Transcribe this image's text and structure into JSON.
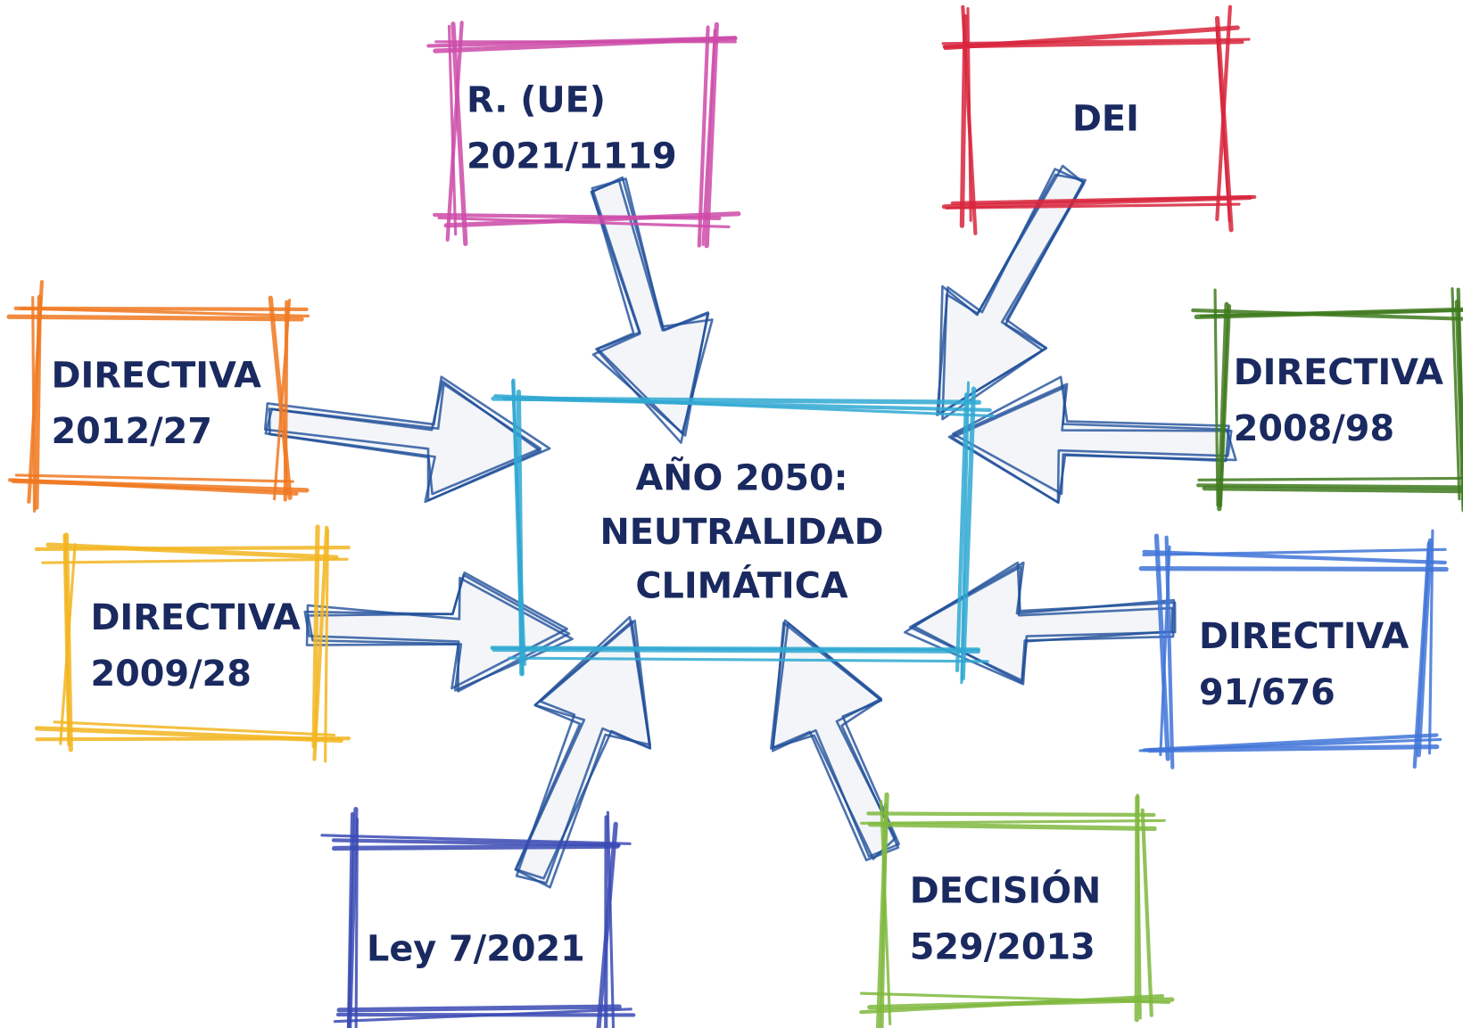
{
  "center": {
    "lines": [
      "AÑO 2050:",
      "NEUTRALIDAD",
      "CLIMÁTICA"
    ]
  },
  "nodes": [
    {
      "lines": [
        "R. (UE)",
        "2021/1119"
      ]
    },
    {
      "lines": [
        "DEI"
      ]
    },
    {
      "lines": [
        "DIRECTIVA",
        "2012/27"
      ]
    },
    {
      "lines": [
        "DIRECTIVA",
        "2008/98"
      ]
    },
    {
      "lines": [
        "DIRECTIVA",
        "2009/28"
      ]
    },
    {
      "lines": [
        "DIRECTIVA",
        "91/676"
      ]
    },
    {
      "lines": [
        "Ley 7/2021"
      ]
    },
    {
      "lines": [
        "DECISIÓN",
        "529/2013"
      ]
    }
  ]
}
